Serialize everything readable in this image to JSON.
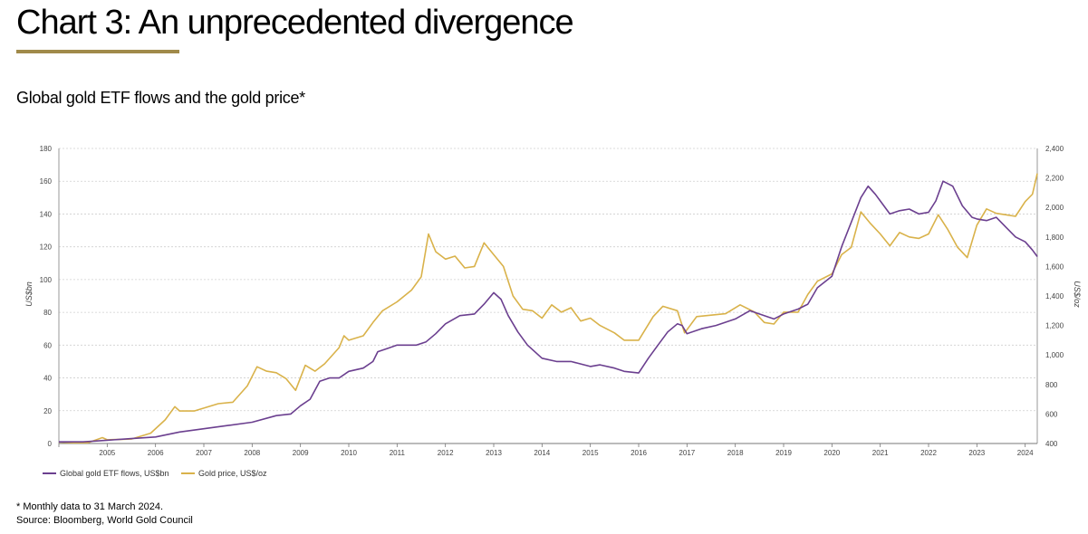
{
  "header": {
    "title": "Chart 3: An unprecedented divergence",
    "subtitle": "Global gold ETF flows and the gold price*"
  },
  "footer": {
    "note": "* Monthly data to 31 March 2024.",
    "source": "Source: Bloomberg, World Gold Council"
  },
  "colors": {
    "accent": "#a08a4a",
    "etf": "#6b3f8f",
    "gold": "#d9b24a",
    "grid": "#cfcfcf",
    "axis": "#444444"
  },
  "chart_data": {
    "type": "line",
    "title": "Global gold ETF flows and the gold price*",
    "ylabel_left": "US$bn",
    "ylabel_right": "US$/oz",
    "ylim_left": [
      0,
      180
    ],
    "ylim_right": [
      400,
      2400
    ],
    "yticks_left": [
      0,
      20,
      40,
      60,
      80,
      100,
      120,
      140,
      160,
      180
    ],
    "yticks_right": [
      "400",
      "600",
      "800",
      "1,000",
      "1,200",
      "1,400",
      "1,600",
      "1,800",
      "2,000",
      "2,200",
      "2,400"
    ],
    "yticks_right_values": [
      400,
      600,
      800,
      1000,
      1200,
      1400,
      1600,
      1800,
      2000,
      2200,
      2400
    ],
    "x_range": [
      2004.0,
      2024.25
    ],
    "x_tick_labels": [
      "2005",
      "2006",
      "2007",
      "2008",
      "2009",
      "2010",
      "2011",
      "2012",
      "2013",
      "2014",
      "2015",
      "2016",
      "2017",
      "2018",
      "2019",
      "2020",
      "2021",
      "2022",
      "2023",
      "2024"
    ],
    "x_tick_values": [
      2005,
      2006,
      2007,
      2008,
      2009,
      2010,
      2011,
      2012,
      2013,
      2014,
      2015,
      2016,
      2017,
      2018,
      2019,
      2020,
      2021,
      2022,
      2023,
      2024
    ],
    "grid": true,
    "legend_position": "bottom-left",
    "series": [
      {
        "name": "Global gold ETF flows, US$bn",
        "axis": "left",
        "color": "#6b3f8f",
        "points": [
          [
            2004.0,
            1
          ],
          [
            2004.5,
            1
          ],
          [
            2005.0,
            2
          ],
          [
            2005.5,
            3
          ],
          [
            2006.0,
            4
          ],
          [
            2006.5,
            7
          ],
          [
            2007.0,
            9
          ],
          [
            2007.5,
            11
          ],
          [
            2008.0,
            13
          ],
          [
            2008.5,
            17
          ],
          [
            2008.8,
            18
          ],
          [
            2009.0,
            23
          ],
          [
            2009.2,
            27
          ],
          [
            2009.4,
            38
          ],
          [
            2009.6,
            40
          ],
          [
            2009.8,
            40
          ],
          [
            2010.0,
            44
          ],
          [
            2010.3,
            46
          ],
          [
            2010.5,
            50
          ],
          [
            2010.6,
            56
          ],
          [
            2010.8,
            58
          ],
          [
            2011.0,
            60
          ],
          [
            2011.2,
            60
          ],
          [
            2011.4,
            60
          ],
          [
            2011.6,
            62
          ],
          [
            2011.8,
            67
          ],
          [
            2012.0,
            73
          ],
          [
            2012.3,
            78
          ],
          [
            2012.6,
            79
          ],
          [
            2012.8,
            85
          ],
          [
            2013.0,
            92
          ],
          [
            2013.15,
            88
          ],
          [
            2013.3,
            78
          ],
          [
            2013.5,
            68
          ],
          [
            2013.7,
            60
          ],
          [
            2014.0,
            52
          ],
          [
            2014.3,
            50
          ],
          [
            2014.6,
            50
          ],
          [
            2015.0,
            47
          ],
          [
            2015.2,
            48
          ],
          [
            2015.5,
            46
          ],
          [
            2015.7,
            44
          ],
          [
            2016.0,
            43
          ],
          [
            2016.2,
            52
          ],
          [
            2016.4,
            60
          ],
          [
            2016.6,
            68
          ],
          [
            2016.8,
            73
          ],
          [
            2016.9,
            72
          ],
          [
            2017.0,
            67
          ],
          [
            2017.3,
            70
          ],
          [
            2017.6,
            72
          ],
          [
            2018.0,
            76
          ],
          [
            2018.3,
            81
          ],
          [
            2018.6,
            78
          ],
          [
            2018.8,
            76
          ],
          [
            2019.0,
            79
          ],
          [
            2019.3,
            82
          ],
          [
            2019.5,
            85
          ],
          [
            2019.7,
            95
          ],
          [
            2020.0,
            102
          ],
          [
            2020.2,
            120
          ],
          [
            2020.4,
            135
          ],
          [
            2020.6,
            150
          ],
          [
            2020.75,
            157
          ],
          [
            2020.9,
            152
          ],
          [
            2021.0,
            148
          ],
          [
            2021.2,
            140
          ],
          [
            2021.4,
            142
          ],
          [
            2021.6,
            143
          ],
          [
            2021.8,
            140
          ],
          [
            2022.0,
            141
          ],
          [
            2022.15,
            148
          ],
          [
            2022.3,
            160
          ],
          [
            2022.5,
            157
          ],
          [
            2022.7,
            145
          ],
          [
            2022.9,
            138
          ],
          [
            2023.0,
            137
          ],
          [
            2023.2,
            136
          ],
          [
            2023.4,
            138
          ],
          [
            2023.6,
            132
          ],
          [
            2023.8,
            126
          ],
          [
            2024.0,
            123
          ],
          [
            2024.15,
            118
          ],
          [
            2024.25,
            114
          ]
        ]
      },
      {
        "name": "Gold price, US$/oz",
        "axis": "right",
        "color": "#d9b24a",
        "points": [
          [
            2004.0,
            410
          ],
          [
            2004.3,
            405
          ],
          [
            2004.6,
            405
          ],
          [
            2004.9,
            440
          ],
          [
            2005.0,
            425
          ],
          [
            2005.5,
            430
          ],
          [
            2005.9,
            470
          ],
          [
            2006.2,
            560
          ],
          [
            2006.4,
            650
          ],
          [
            2006.5,
            620
          ],
          [
            2006.8,
            620
          ],
          [
            2007.0,
            640
          ],
          [
            2007.3,
            670
          ],
          [
            2007.6,
            680
          ],
          [
            2007.9,
            790
          ],
          [
            2008.1,
            920
          ],
          [
            2008.3,
            890
          ],
          [
            2008.5,
            880
          ],
          [
            2008.7,
            840
          ],
          [
            2008.9,
            760
          ],
          [
            2009.1,
            930
          ],
          [
            2009.3,
            890
          ],
          [
            2009.5,
            940
          ],
          [
            2009.8,
            1050
          ],
          [
            2009.9,
            1130
          ],
          [
            2010.0,
            1100
          ],
          [
            2010.3,
            1130
          ],
          [
            2010.5,
            1220
          ],
          [
            2010.7,
            1300
          ],
          [
            2011.0,
            1360
          ],
          [
            2011.3,
            1440
          ],
          [
            2011.5,
            1530
          ],
          [
            2011.65,
            1820
          ],
          [
            2011.8,
            1700
          ],
          [
            2012.0,
            1650
          ],
          [
            2012.2,
            1670
          ],
          [
            2012.4,
            1590
          ],
          [
            2012.6,
            1600
          ],
          [
            2012.8,
            1760
          ],
          [
            2013.0,
            1680
          ],
          [
            2013.2,
            1600
          ],
          [
            2013.4,
            1400
          ],
          [
            2013.6,
            1310
          ],
          [
            2013.8,
            1300
          ],
          [
            2014.0,
            1250
          ],
          [
            2014.2,
            1340
          ],
          [
            2014.4,
            1290
          ],
          [
            2014.6,
            1320
          ],
          [
            2014.8,
            1230
          ],
          [
            2015.0,
            1250
          ],
          [
            2015.2,
            1200
          ],
          [
            2015.5,
            1150
          ],
          [
            2015.7,
            1100
          ],
          [
            2016.0,
            1100
          ],
          [
            2016.3,
            1260
          ],
          [
            2016.5,
            1330
          ],
          [
            2016.8,
            1300
          ],
          [
            2016.95,
            1150
          ],
          [
            2017.2,
            1260
          ],
          [
            2017.5,
            1270
          ],
          [
            2017.8,
            1280
          ],
          [
            2018.1,
            1340
          ],
          [
            2018.4,
            1290
          ],
          [
            2018.6,
            1220
          ],
          [
            2018.8,
            1210
          ],
          [
            2019.0,
            1290
          ],
          [
            2019.3,
            1290
          ],
          [
            2019.5,
            1410
          ],
          [
            2019.7,
            1500
          ],
          [
            2020.0,
            1550
          ],
          [
            2020.2,
            1680
          ],
          [
            2020.4,
            1730
          ],
          [
            2020.6,
            1970
          ],
          [
            2020.8,
            1890
          ],
          [
            2021.0,
            1820
          ],
          [
            2021.2,
            1740
          ],
          [
            2021.4,
            1830
          ],
          [
            2021.6,
            1800
          ],
          [
            2021.8,
            1790
          ],
          [
            2022.0,
            1820
          ],
          [
            2022.2,
            1950
          ],
          [
            2022.4,
            1850
          ],
          [
            2022.6,
            1730
          ],
          [
            2022.8,
            1660
          ],
          [
            2023.0,
            1880
          ],
          [
            2023.2,
            1990
          ],
          [
            2023.4,
            1960
          ],
          [
            2023.6,
            1950
          ],
          [
            2023.8,
            1940
          ],
          [
            2024.0,
            2040
          ],
          [
            2024.15,
            2090
          ],
          [
            2024.25,
            2230
          ]
        ]
      }
    ]
  }
}
